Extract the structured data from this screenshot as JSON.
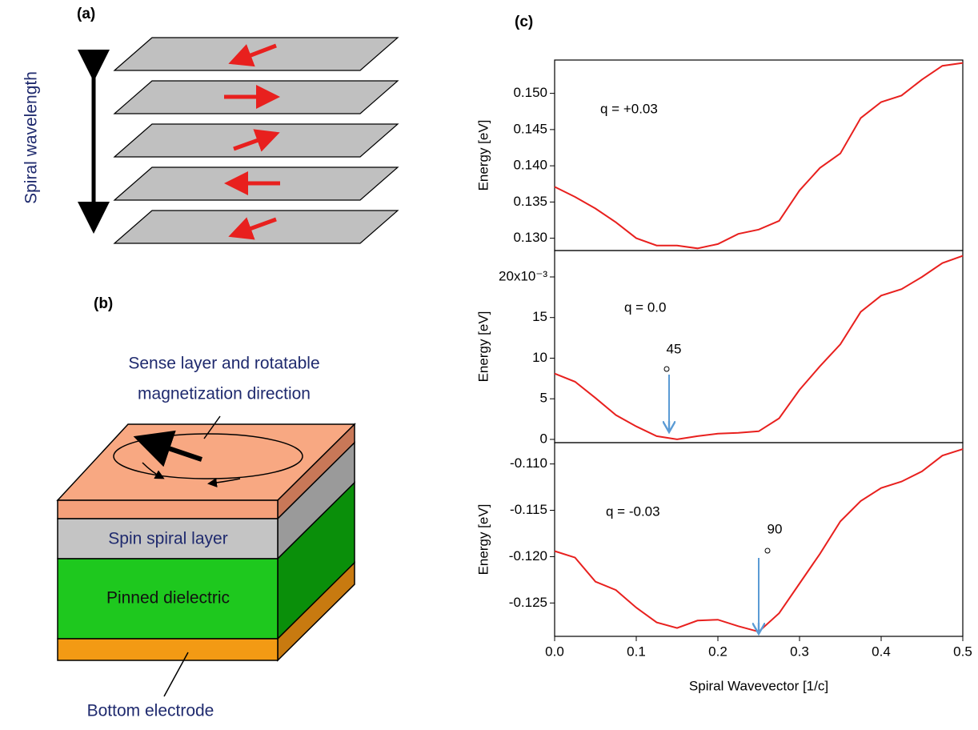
{
  "panel_a": {
    "label": "(a)",
    "axis_text": "Spiral wavelength"
  },
  "panel_b": {
    "label": "(b)",
    "sense_line1": "Sense layer and rotatable",
    "sense_line2": "magnetization direction",
    "spiral_layer": "Spin spiral layer",
    "dielectric": "Pinned dielectric",
    "electrode": "Bottom electrode"
  },
  "panel_c": {
    "label": "(c)"
  },
  "chart_data": [
    {
      "type": "line",
      "ylabel": "Energy  [eV]",
      "color": "#e8201e",
      "annotation": "q = +0.03",
      "x": [
        0,
        0.025,
        0.05,
        0.075,
        0.1,
        0.125,
        0.15,
        0.175,
        0.2,
        0.225,
        0.25,
        0.275,
        0.3,
        0.325,
        0.35,
        0.375,
        0.4,
        0.425,
        0.45,
        0.475,
        0.5
      ],
      "values": [
        0.1371,
        0.1357,
        0.1341,
        0.1322,
        0.13,
        0.129,
        0.129,
        0.1286,
        0.1292,
        0.1306,
        0.1312,
        0.1324,
        0.1366,
        0.1397,
        0.1417,
        0.1466,
        0.1488,
        0.1497,
        0.1519,
        0.1538,
        0.1542
      ],
      "xlim": [
        0,
        0.5
      ],
      "ylim": [
        0.1283,
        0.1546
      ],
      "yticks": [
        {
          "value": 0.13,
          "label": "0.130"
        },
        0.135,
        {
          "value": 0.14,
          "label": "0.140"
        },
        0.145,
        {
          "value": 0.15,
          "label": "0.150"
        }
      ]
    },
    {
      "type": "line",
      "ylabel": "Energy  [eV]",
      "color": "#e8201e",
      "annotation": "q = 0.0",
      "marker_label": "45",
      "x": [
        0,
        0.025,
        0.05,
        0.075,
        0.1,
        0.125,
        0.15,
        0.175,
        0.2,
        0.225,
        0.25,
        0.275,
        0.3,
        0.325,
        0.35,
        0.375,
        0.4,
        0.425,
        0.45,
        0.475,
        0.5
      ],
      "values": [
        8.1,
        7.1,
        5.1,
        3.0,
        1.6,
        0.4,
        0.0,
        0.4,
        0.7,
        0.8,
        1.0,
        2.6,
        6.1,
        9.0,
        11.7,
        15.7,
        17.7,
        18.5,
        20.0,
        21.7,
        22.6
      ],
      "xlim": [
        0,
        0.5
      ],
      "ylim": [
        -0.4,
        23.25
      ],
      "yticks": [
        0,
        5,
        10,
        15,
        {
          "value": 20,
          "label": "20x10⁻³"
        }
      ]
    },
    {
      "type": "line",
      "ylabel": "Energy  [eV]",
      "xlabel": "Spiral Wavevector  [1/c]",
      "color": "#e8201e",
      "annotation": "q = -0.03",
      "marker_label": "90",
      "x": [
        0,
        0.025,
        0.05,
        0.075,
        0.1,
        0.125,
        0.15,
        0.175,
        0.2,
        0.225,
        0.25,
        0.275,
        0.3,
        0.325,
        0.35,
        0.375,
        0.4,
        0.425,
        0.45,
        0.475,
        0.5
      ],
      "values": [
        -0.1194,
        -0.1201,
        -0.1227,
        -0.1236,
        -0.1255,
        -0.1271,
        -0.1277,
        -0.1269,
        -0.1268,
        -0.1275,
        -0.1281,
        -0.1261,
        -0.1229,
        -0.1197,
        -0.1162,
        -0.114,
        -0.1126,
        -0.1119,
        -0.1108,
        -0.1091,
        -0.1084
      ],
      "xlim": [
        0,
        0.5
      ],
      "ylim": [
        -0.1286,
        -0.1077
      ],
      "xticks": [
        {
          "value": 0,
          "label": "0.0"
        },
        0.1,
        0.2,
        0.3,
        0.4,
        0.5
      ],
      "yticks": [
        -0.125,
        {
          "value": -0.12,
          "label": "-0.120"
        },
        -0.115,
        {
          "value": -0.11,
          "label": "-0.110"
        }
      ]
    }
  ]
}
